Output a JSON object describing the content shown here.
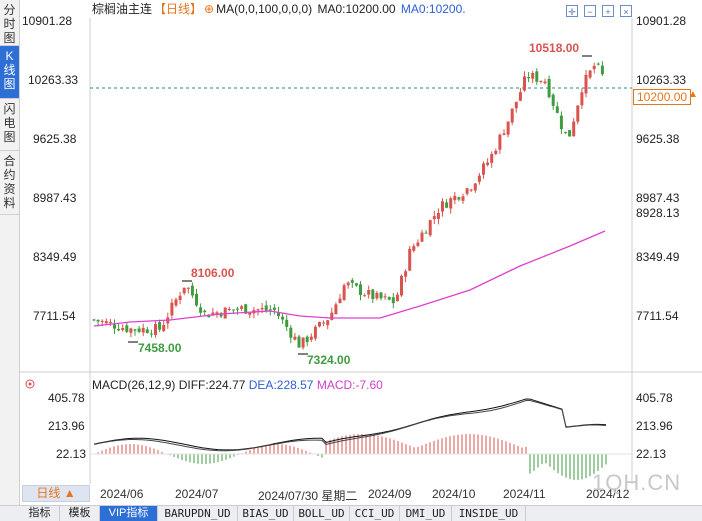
{
  "left_tabs": [
    {
      "label": "分时图",
      "active": false
    },
    {
      "label": "K线图",
      "active": true
    },
    {
      "label": "闪电图",
      "active": false
    },
    {
      "label": "合约资料",
      "active": false
    }
  ],
  "header": {
    "instrument": "棕榈油主连",
    "period_tag": "【日线】",
    "settings_glyph": "⊕",
    "ma_text": "MA(0,0,100,0,0,0)",
    "ma0_text": "MA0:10200.00",
    "ma0_blue_text": "MA0:10200."
  },
  "price_axis": {
    "labels": [
      "10901.28",
      "10263.33",
      "9625.38",
      "8987.43",
      "8349.49",
      "7711.54"
    ],
    "current_price_tag": "10200.00",
    "ma_tag": "8928.13"
  },
  "annotations": {
    "high_1": "8106.00",
    "low_1": "7458.00",
    "low_2": "7324.00",
    "high_2": "10518.00"
  },
  "macd": {
    "title": "MACD(26,12,9)",
    "diff": "DIFF:224.77",
    "dea": "DEA:228.57",
    "macd": "MACD:-7.60",
    "axis_labels": [
      "405.78",
      "213.96",
      "22.13"
    ]
  },
  "date_axis": {
    "period_button": "日线 ▲",
    "labels": [
      "2024/06",
      "2024/07",
      "2024/07/30 星期二",
      "2024/09",
      "2024/10",
      "2024/11",
      "2024/12"
    ]
  },
  "bottom_tabs": [
    "指标",
    "模板",
    "VIP指标",
    "BARUPDN_UD",
    "BIAS_UD",
    "BOLL_UD",
    "CCI_UD",
    "DMI_UD",
    "INSIDE_UD"
  ],
  "watermark": "1QH.CN",
  "colors": {
    "up": "#d9534f",
    "down": "#3f9b3f",
    "ma": "#e040d0",
    "diff": "#111111",
    "dea": "#222222",
    "accent": "#2e6fd6"
  }
}
